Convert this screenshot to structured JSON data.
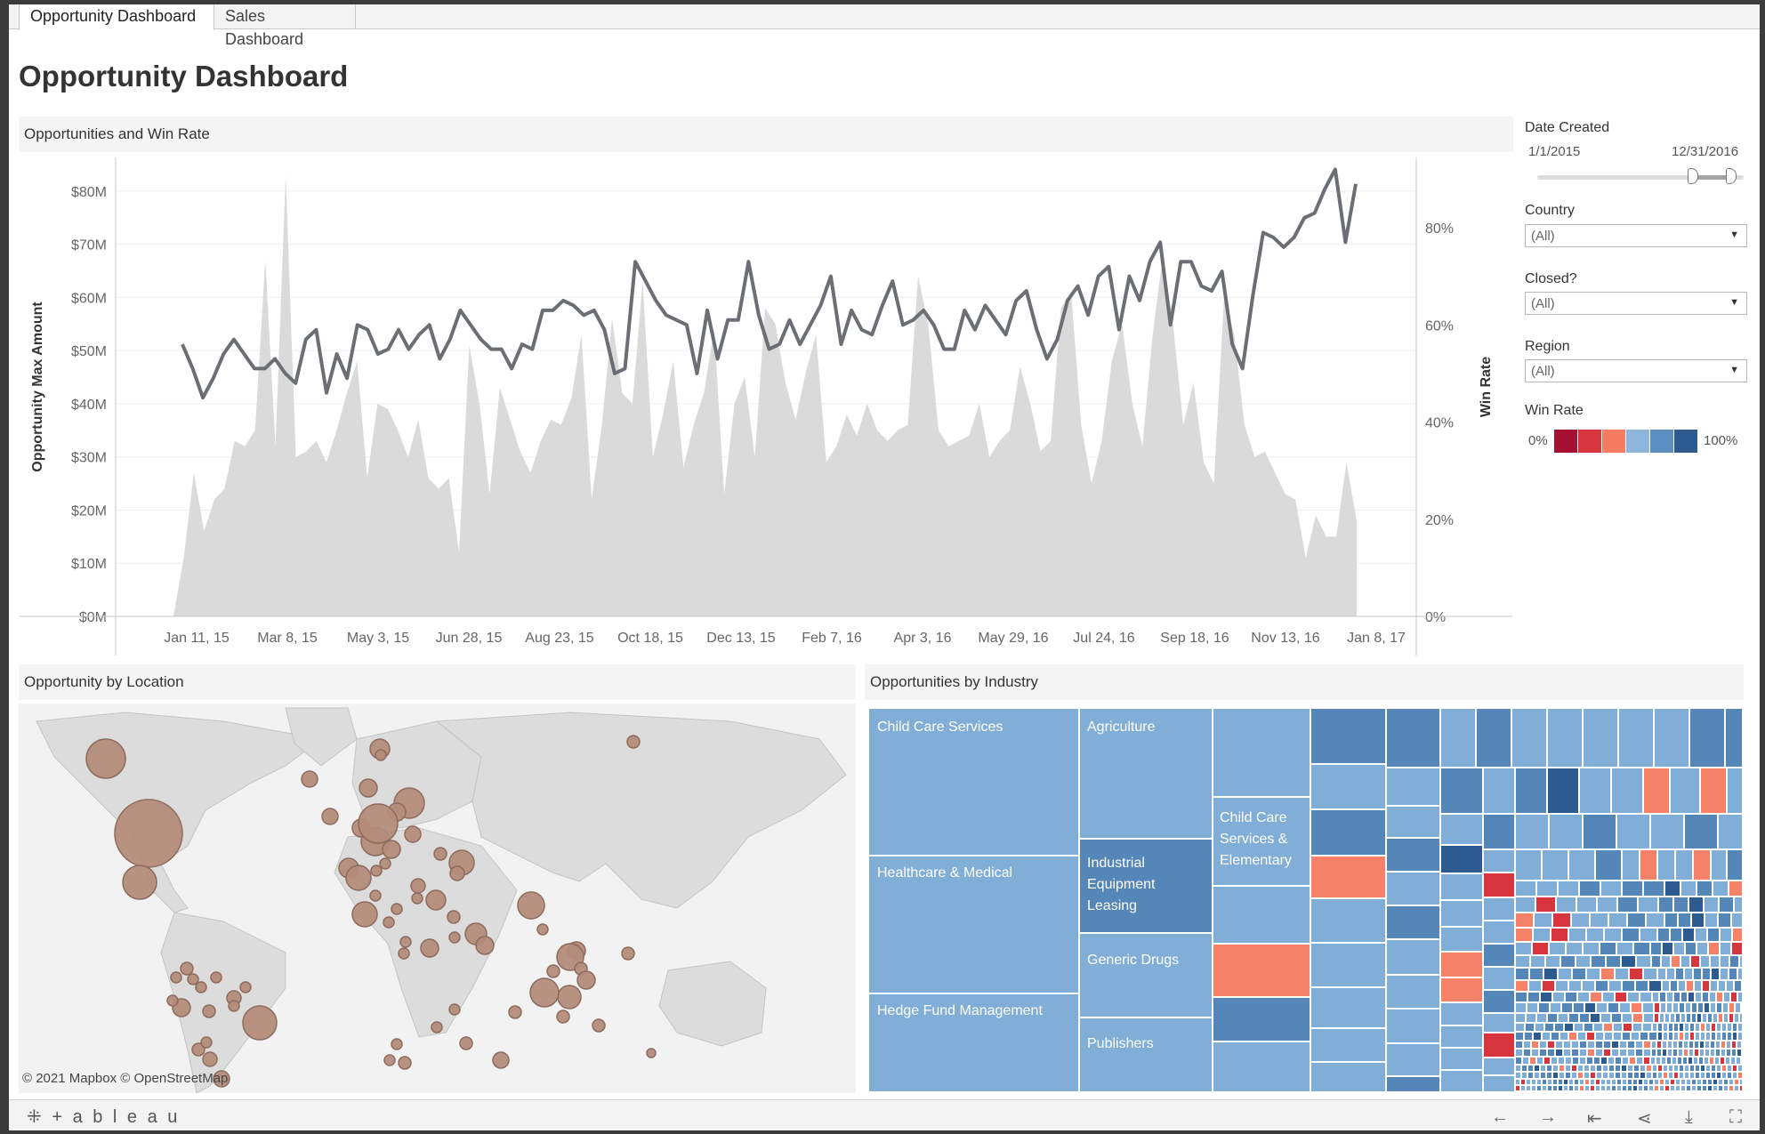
{
  "tabs": [
    {
      "label": "Opportunity Dashboard",
      "active": true
    },
    {
      "label": "Sales Dashboard",
      "active": false
    }
  ],
  "dashboard_title": "Opportunity Dashboard",
  "panels": {
    "trend": "Opportunities and Win Rate",
    "location": "Opportunity by Location",
    "industry": "Opportunities by Industry"
  },
  "filters": {
    "date_created": {
      "label": "Date Created",
      "start": "1/1/2015",
      "end": "12/31/2016",
      "range_low": 0.75,
      "range_high": 1.0
    },
    "country": {
      "label": "Country",
      "value": "(All)"
    },
    "closed": {
      "label": "Closed?",
      "value": "(All)"
    },
    "region": {
      "label": "Region",
      "value": "(All)"
    },
    "win_rate": {
      "label": "Win Rate",
      "min_label": "0%",
      "max_label": "100%",
      "colors": [
        "#a50f32",
        "#d6353d",
        "#f57c63",
        "#8fb6dc",
        "#5a8dc0",
        "#2e5b8f"
      ]
    }
  },
  "map": {
    "copyright": "© 2021 Mapbox  © OpenStreetMap"
  },
  "industry_labels": [
    "Child Care Services",
    "Healthcare & Medical",
    "Hedge Fund Management",
    "Agriculture",
    "Industrial Equipment Leasing",
    "Generic Drugs",
    "Publishers",
    "Child Care Services & Elementary"
  ],
  "footer": {
    "brand": "+ a b l e a u"
  },
  "colors": {
    "area": "#dadada",
    "line": "#6b6f74",
    "bubble": "#b48c7a",
    "tree_light": "#80aed6",
    "tree_mid": "#5586b8",
    "tree_red": "#f58168"
  },
  "chart_data": {
    "type": "line",
    "x_tick_labels": [
      "Jan 11, 15",
      "Mar 8, 15",
      "May 3, 15",
      "Jun 28, 15",
      "Aug 23, 15",
      "Oct 18, 15",
      "Dec 13, 15",
      "Feb 7, 16",
      "Apr 3, 16",
      "May 29, 16",
      "Jul 24, 16",
      "Sep 18, 16",
      "Nov 13, 16",
      "Jan 8, 17"
    ],
    "y_left_label": "Opportunity Max Amount",
    "y_left_ticks": [
      "$0M",
      "$10M",
      "$20M",
      "$30M",
      "$40M",
      "$50M",
      "$60M",
      "$70M",
      "$80M"
    ],
    "y_left_lim": [
      0,
      85
    ],
    "y_right_label": "Win Rate",
    "y_right_ticks": [
      "0%",
      "20%",
      "40%",
      "60%",
      "80%"
    ],
    "y_right_lim": [
      0,
      93
    ],
    "series": [
      {
        "kind": "area",
        "values": [
          0,
          11,
          27,
          16,
          22,
          24,
          33,
          32,
          35,
          67,
          32,
          83,
          30,
          31,
          33,
          29,
          35,
          42,
          48,
          26,
          40,
          39,
          35,
          30,
          37,
          26,
          24,
          26,
          12,
          51,
          40,
          23,
          43,
          37,
          31,
          27,
          33,
          37,
          36,
          41,
          53,
          22,
          36,
          56,
          42,
          40,
          63,
          30,
          38,
          48,
          28,
          36,
          42,
          54,
          23,
          40,
          45,
          30,
          58,
          55,
          44,
          37,
          46,
          53,
          29,
          32,
          38,
          34,
          40,
          35,
          33,
          35,
          36,
          64,
          55,
          35,
          32,
          33,
          34,
          40,
          30,
          33,
          35,
          47,
          40,
          31,
          33,
          58,
          61,
          36,
          25,
          33,
          48,
          55,
          40,
          32,
          53,
          68,
          55,
          36,
          44,
          29,
          25,
          60,
          53,
          36,
          30,
          31,
          27,
          23,
          22,
          11,
          19,
          15,
          15,
          29,
          18
        ]
      },
      {
        "kind": "line",
        "values": [
          56,
          51,
          45,
          49,
          54,
          57,
          54,
          51,
          51,
          53,
          50,
          48,
          57,
          59,
          46,
          54,
          49,
          60,
          59,
          54,
          55,
          59,
          55,
          58,
          60,
          53,
          57,
          63,
          60,
          57,
          55,
          55,
          51,
          56,
          55,
          63,
          63,
          65,
          64,
          62,
          63,
          59,
          50,
          51,
          73,
          69,
          65,
          62,
          61,
          60,
          50,
          63,
          53,
          61,
          61,
          73,
          62,
          55,
          56,
          61,
          56,
          60,
          64,
          70,
          56,
          63,
          59,
          58,
          64,
          69,
          60,
          61,
          63,
          60,
          55,
          55,
          63,
          59,
          64,
          61,
          58,
          65,
          67,
          59,
          53,
          57,
          65,
          68,
          62,
          70,
          72,
          59,
          70,
          65,
          73,
          77,
          60,
          73,
          73,
          68,
          67,
          71,
          56,
          51,
          66,
          79,
          78,
          76,
          78,
          82,
          83,
          88,
          92,
          77,
          89
        ]
      }
    ]
  }
}
